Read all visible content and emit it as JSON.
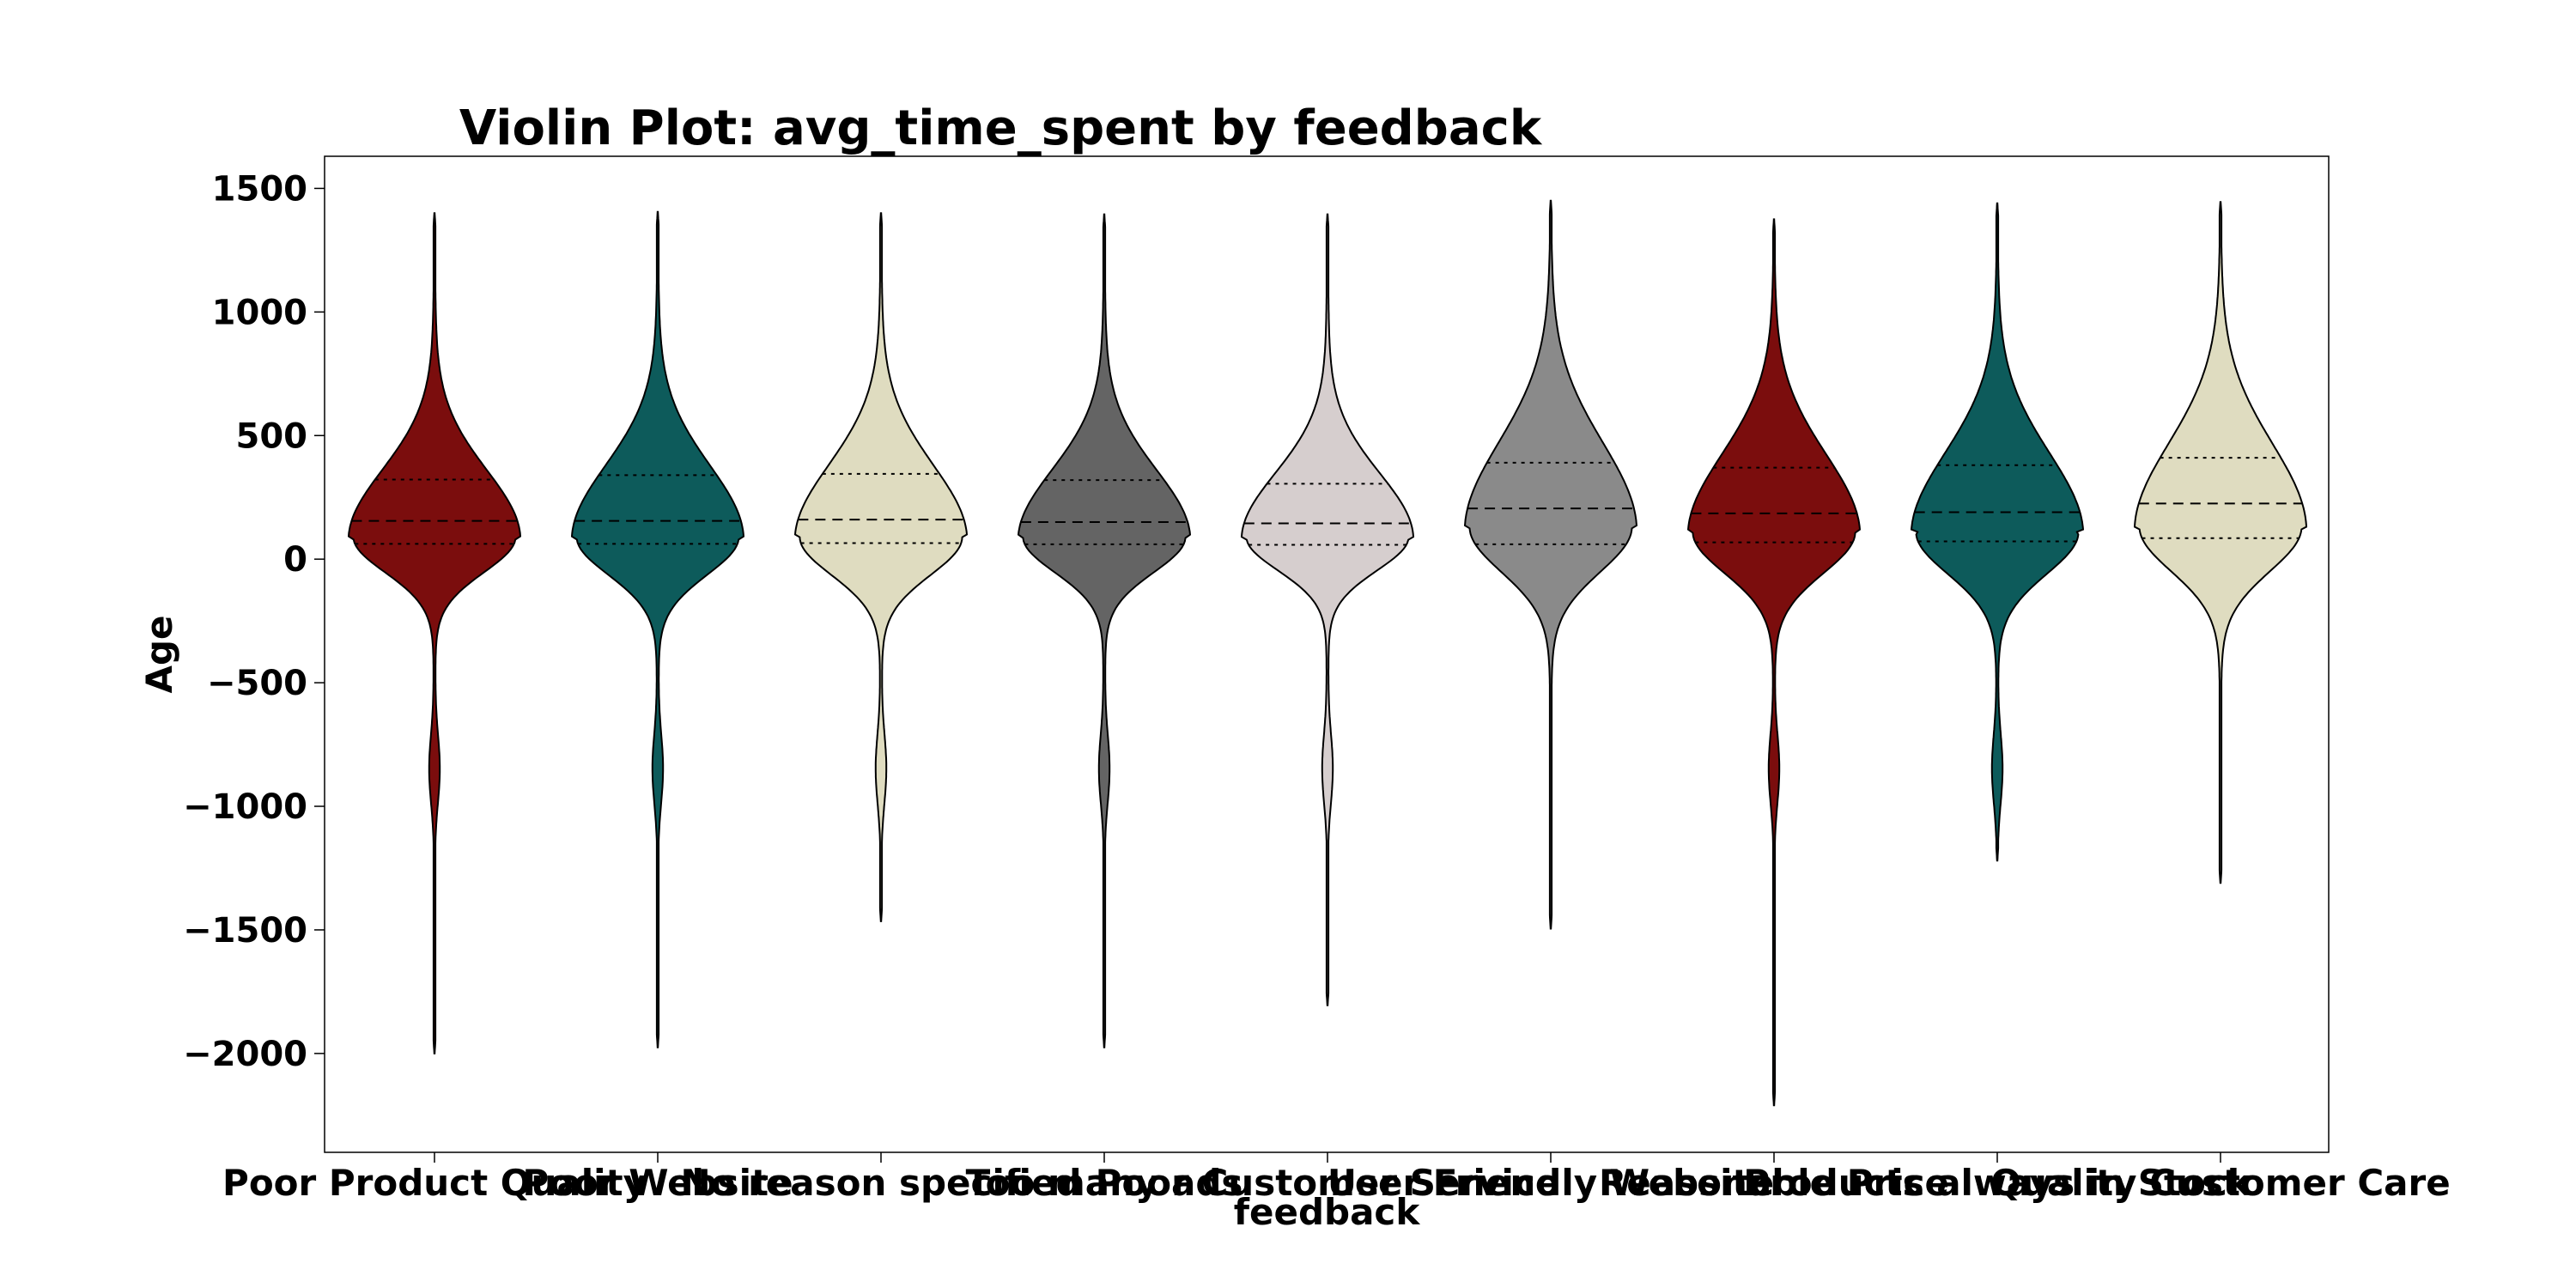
{
  "chart_data": {
    "type": "violin",
    "title": "Violin Plot: avg_time_spent by feedback",
    "xlabel": "feedback",
    "ylabel": "Age",
    "ylim": [
      -2400,
      1630
    ],
    "yticks": [
      1500,
      1000,
      500,
      0,
      -500,
      -1000,
      -1500,
      -2000
    ],
    "ytick_labels": [
      "1500",
      "1000",
      "500",
      "0",
      "−500",
      "−1000",
      "−1500",
      "−2000"
    ],
    "grid": false,
    "legend": "none",
    "categories": [
      "Poor Product Quality",
      "Poor Website",
      "No reason specified",
      "Too many ads",
      "Poor Customer Service",
      "User Friendly Website",
      "Reasonable Price",
      "Products always in Stock",
      "Quality Customer Care"
    ],
    "series": [
      {
        "category": "Poor Product Quality",
        "color": "#7b0d0d",
        "min": -2000,
        "max": 1400,
        "q1": 62,
        "median": 155,
        "q3": 322,
        "peak": 90,
        "shape": "negative_tail_bulge"
      },
      {
        "category": "Poor Website",
        "color": "#0d5b5b",
        "min": -1975,
        "max": 1405,
        "q1": 62,
        "median": 155,
        "q3": 340,
        "peak": 90,
        "shape": "negative_tail_bulge"
      },
      {
        "category": "No reason specified",
        "color": "#dfdcc0",
        "min": -1465,
        "max": 1400,
        "q1": 65,
        "median": 160,
        "q3": 345,
        "peak": 90,
        "shape": "negative_tail_bulge"
      },
      {
        "category": "Too many ads",
        "color": "#646464",
        "min": -1975,
        "max": 1395,
        "q1": 60,
        "median": 150,
        "q3": 320,
        "peak": 90,
        "shape": "negative_tail_bulge"
      },
      {
        "category": "Poor Customer Service",
        "color": "#d6cece",
        "min": -1805,
        "max": 1395,
        "q1": 58,
        "median": 145,
        "q3": 305,
        "peak": 90,
        "shape": "negative_tail_bulge"
      },
      {
        "category": "User Friendly Website",
        "color": "#8a8a8a",
        "min": -1495,
        "max": 1450,
        "q1": 60,
        "median": 205,
        "q3": 390,
        "peak": 130,
        "shape": "wide"
      },
      {
        "category": "Reasonable Price",
        "color": "#7b0d0d",
        "min": -2210,
        "max": 1375,
        "q1": 68,
        "median": 185,
        "q3": 370,
        "peak": 110,
        "shape": "negative_tail_bulge"
      },
      {
        "category": "Products always in Stock",
        "color": "#0d5b5b",
        "min": -1220,
        "max": 1440,
        "q1": 72,
        "median": 190,
        "q3": 380,
        "peak": 110,
        "shape": "negative_tail_bulge"
      },
      {
        "category": "Quality Customer Care",
        "color": "#dfdcc0",
        "min": -1310,
        "max": 1445,
        "q1": 85,
        "median": 225,
        "q3": 410,
        "peak": 130,
        "shape": "wide"
      }
    ]
  }
}
